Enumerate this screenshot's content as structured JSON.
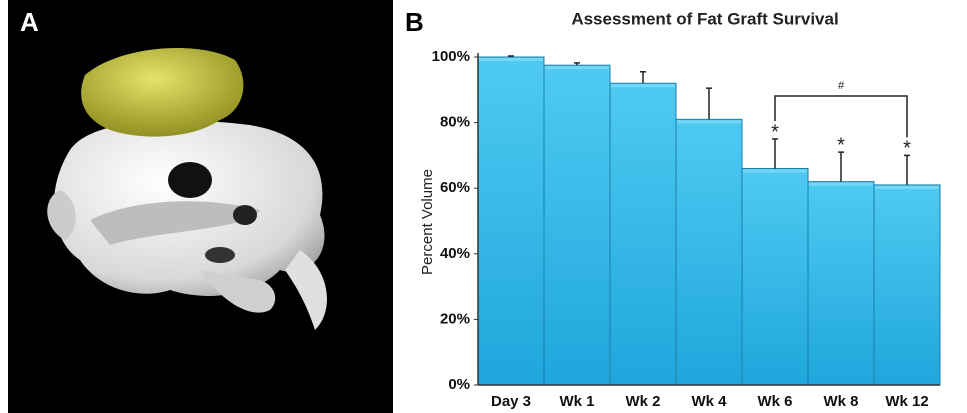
{
  "panel_labels": [
    "A",
    "B"
  ],
  "chart_data": {
    "type": "bar",
    "title": "Assessment of Fat Graft Survival",
    "y_label": "Percent Volume",
    "categories": [
      "Day 3",
      "Wk 1",
      "Wk 2",
      "Wk 4",
      "Wk 6",
      "Wk 8",
      "Wk 12"
    ],
    "values": [
      100,
      97.5,
      92,
      81,
      66,
      62,
      61
    ],
    "errors": [
      0.3,
      0.7,
      3.5,
      9.5,
      9,
      9,
      9
    ],
    "color": "#33bdea",
    "ylim": [
      0,
      100
    ],
    "yticks": [
      {
        "value": 0,
        "label": "0%"
      },
      {
        "value": 20,
        "label": "20%"
      },
      {
        "value": 40,
        "label": "40%"
      },
      {
        "value": 60,
        "label": "60%"
      },
      {
        "value": 80,
        "label": "80%"
      },
      {
        "value": 100,
        "label": "100%"
      }
    ],
    "annotations": [
      {
        "text": "*",
        "category": "Wk 6"
      },
      {
        "text": "*",
        "category": "Wk 8"
      },
      {
        "text": "*",
        "category": "Wk 12"
      }
    ],
    "bracket": {
      "text": "#",
      "from": "Wk 6",
      "to": "Wk 12"
    }
  }
}
